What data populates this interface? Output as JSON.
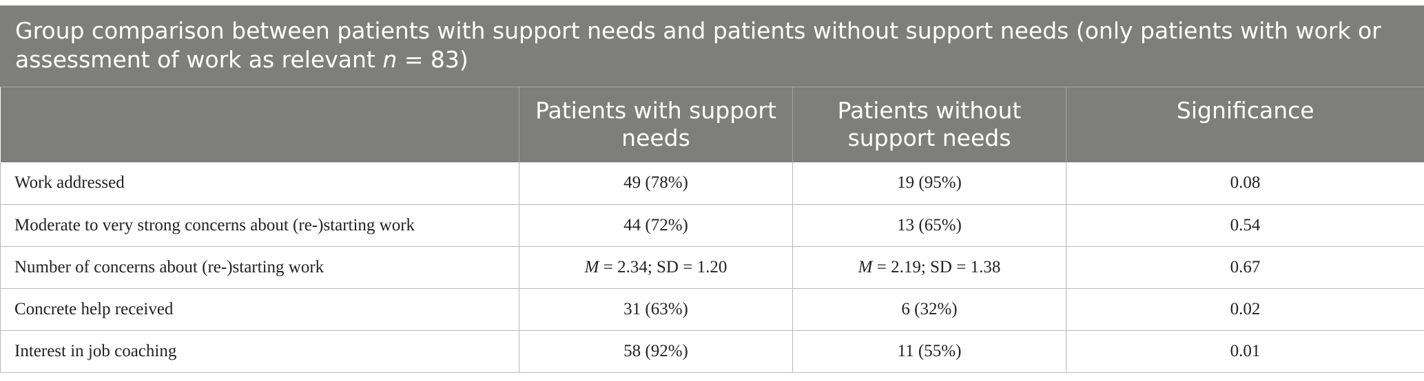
{
  "table": {
    "caption_main": "Group comparison between patients with support needs and patients without support needs (only patients with work or assessment of work as relevant ",
    "caption_italic": "n",
    "caption_tail": " = 83)",
    "headers": [
      "",
      "Patients with support needs",
      "Patients without support needs",
      "Significance"
    ],
    "rows": [
      {
        "label": "Work addressed",
        "with": "49 (78%)",
        "without": "19 (95%)",
        "significance": "0.08"
      },
      {
        "label": "Moderate to very strong concerns about (re-)starting work",
        "with": "44 (72%)",
        "without": "13 (65%)",
        "significance": "0.54"
      },
      {
        "label": "Number of concerns about (re-)starting work",
        "with_italic": "M",
        "with_rest": " = 2.34; SD = 1.20",
        "without_italic": "M",
        "without_rest": " = 2.19; SD = 1.38",
        "significance": "0.67"
      },
      {
        "label": "Concrete help received",
        "with": "31 (63%)",
        "without": "6 (32%)",
        "significance": "0.02"
      },
      {
        "label": "Interest in job coaching",
        "with": "58 (92%)",
        "without": "11 (55%)",
        "significance": "0.01"
      }
    ]
  }
}
